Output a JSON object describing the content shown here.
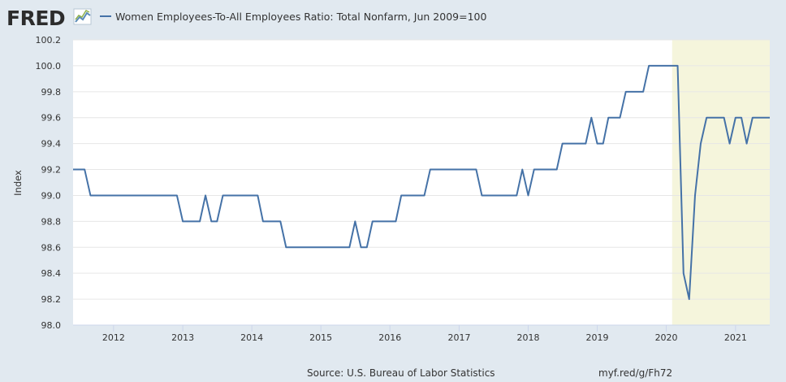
{
  "header": {
    "logo_text": "FRED",
    "series_title": "Women Employees-To-All Employees Ratio: Total Nonfarm, Jun 2009=100"
  },
  "footer": {
    "source": "Source: U.S. Bureau of Labor Statistics",
    "short_url": "myf.red/g/Fh72"
  },
  "colors": {
    "background": "#e1e9f0",
    "plot_background": "#ffffff",
    "series_line": "#4572a7",
    "recession_band": "#f5f5dc",
    "grid": "#e6e6e6",
    "text": "#333333"
  },
  "chart_data": {
    "type": "line",
    "title": "Women Employees-To-All Employees Ratio: Total Nonfarm, Jun 2009=100",
    "xlabel": "",
    "ylabel": "Index",
    "ylim": [
      98.0,
      100.2
    ],
    "yticks": [
      "98.0",
      "98.2",
      "98.4",
      "98.6",
      "98.8",
      "99.0",
      "99.2",
      "99.4",
      "99.6",
      "99.8",
      "100.0",
      "100.2"
    ],
    "xlim": [
      "2011-06-01",
      "2021-07-01"
    ],
    "xticks": [
      "2012",
      "2013",
      "2014",
      "2015",
      "2016",
      "2017",
      "2018",
      "2019",
      "2020",
      "2021"
    ],
    "grid": "horizontal",
    "recession_shading": {
      "start": "2020-02-01",
      "end": "2021-07-01"
    },
    "series": [
      {
        "name": "Women Employees-To-All Employees Ratio: Total Nonfarm, Jun 2009=100",
        "x": [
          "2011-06",
          "2011-08",
          "2011-09",
          "2011-10",
          "2011-11",
          "2011-12",
          "2012-01",
          "2012-02",
          "2012-03",
          "2012-04",
          "2012-05",
          "2012-06",
          "2012-07",
          "2012-08",
          "2012-09",
          "2012-10",
          "2012-11",
          "2012-12",
          "2013-01",
          "2013-02",
          "2013-03",
          "2013-04",
          "2013-05",
          "2013-06",
          "2013-07",
          "2013-08",
          "2013-09",
          "2013-10",
          "2013-11",
          "2013-12",
          "2014-01",
          "2014-02",
          "2014-03",
          "2014-04",
          "2014-05",
          "2014-06",
          "2014-07",
          "2014-08",
          "2014-09",
          "2014-10",
          "2014-11",
          "2014-12",
          "2015-01",
          "2015-02",
          "2015-03",
          "2015-04",
          "2015-05",
          "2015-06",
          "2015-07",
          "2015-08",
          "2015-09",
          "2015-10",
          "2015-11",
          "2015-12",
          "2016-01",
          "2016-02",
          "2016-03",
          "2016-04",
          "2016-05",
          "2016-06",
          "2016-07",
          "2016-08",
          "2016-09",
          "2016-10",
          "2016-11",
          "2016-12",
          "2017-01",
          "2017-02",
          "2017-03",
          "2017-04",
          "2017-05",
          "2017-06",
          "2017-07",
          "2017-08",
          "2017-09",
          "2017-10",
          "2017-11",
          "2017-12",
          "2018-01",
          "2018-02",
          "2018-03",
          "2018-04",
          "2018-05",
          "2018-06",
          "2018-07",
          "2018-08",
          "2018-09",
          "2018-10",
          "2018-11",
          "2018-12",
          "2019-01",
          "2019-02",
          "2019-03",
          "2019-04",
          "2019-05",
          "2019-06",
          "2019-07",
          "2019-08",
          "2019-09",
          "2019-10",
          "2019-11",
          "2019-12",
          "2020-01",
          "2020-02",
          "2020-03",
          "2020-04",
          "2020-05",
          "2020-06",
          "2020-07",
          "2020-08",
          "2020-09",
          "2020-10",
          "2020-11",
          "2020-12",
          "2021-01",
          "2021-02",
          "2021-03",
          "2021-04",
          "2021-05",
          "2021-06"
        ],
        "values": [
          99.2,
          99.2,
          99.0,
          99.0,
          99.0,
          99.0,
          99.0,
          99.0,
          99.0,
          99.0,
          99.0,
          99.0,
          99.0,
          99.0,
          99.0,
          99.0,
          99.0,
          99.0,
          98.8,
          98.8,
          98.8,
          98.8,
          99.0,
          98.8,
          98.8,
          99.0,
          99.0,
          99.0,
          99.0,
          99.0,
          99.0,
          99.0,
          98.8,
          98.8,
          98.8,
          98.8,
          98.6,
          98.6,
          98.6,
          98.6,
          98.6,
          98.6,
          98.6,
          98.6,
          98.6,
          98.6,
          98.6,
          98.6,
          98.8,
          98.6,
          98.6,
          98.8,
          98.8,
          98.8,
          98.8,
          98.8,
          99.0,
          99.0,
          99.0,
          99.0,
          99.0,
          99.2,
          99.2,
          99.2,
          99.2,
          99.2,
          99.2,
          99.2,
          99.2,
          99.2,
          99.0,
          99.0,
          99.0,
          99.0,
          99.0,
          99.0,
          99.0,
          99.2,
          99.0,
          99.2,
          99.2,
          99.2,
          99.2,
          99.2,
          99.4,
          99.4,
          99.4,
          99.4,
          99.4,
          99.6,
          99.4,
          99.4,
          99.6,
          99.6,
          99.6,
          99.8,
          99.8,
          99.8,
          99.8,
          100.0,
          100.0,
          100.0,
          100.0,
          100.0,
          100.0,
          98.4,
          98.2,
          99.0,
          99.4,
          99.6,
          99.6,
          99.6,
          99.6,
          99.4,
          99.6,
          99.6,
          99.4,
          99.6,
          99.6,
          99.6
        ]
      }
    ]
  }
}
